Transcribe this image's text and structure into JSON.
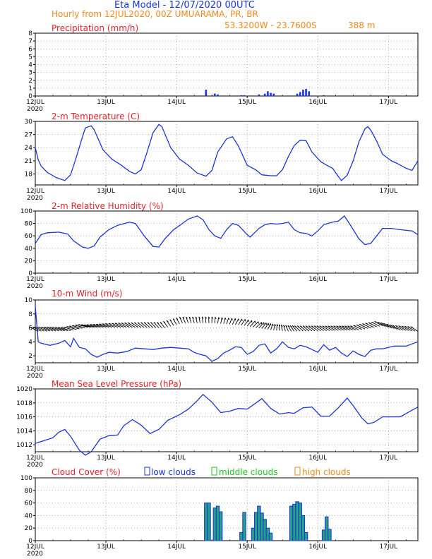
{
  "header": {
    "title": "Eta Model - 12/07/2020 00UTC",
    "subtitle": "Hourly from 12JUL2020, 00Z  UMUARAMA, PR, BR",
    "coords": "53.3200W - 23.7600S",
    "elevation": "388  m"
  },
  "colors": {
    "series": "#1a35d6",
    "title": "#e8202a",
    "header": "#1a35d6",
    "subheader": "#f08a1c",
    "low": "#1a35d6",
    "middle": "#16c816",
    "high": "#f08a1c",
    "wind": "#000000"
  },
  "day_labels": [
    "12JUL",
    "13JUL",
    "14JUL",
    "15JUL",
    "16JUL",
    "17JUL"
  ],
  "year_label": "2020",
  "chart_data": [
    {
      "type": "bar",
      "title": "Precipitation (mm/h)",
      "ylim": [
        0,
        8
      ],
      "yticks": [
        0,
        1,
        2,
        3,
        4,
        5,
        6,
        7,
        8
      ],
      "hours": [
        58,
        61,
        62,
        70,
        71,
        76,
        78,
        79,
        80,
        81,
        89,
        90,
        91,
        92,
        93,
        98
      ],
      "values": [
        0.8,
        0.3,
        0.2,
        0.1,
        0.1,
        0.2,
        0.3,
        0.6,
        0.4,
        0.3,
        0.3,
        0.5,
        0.8,
        0.9,
        0.6,
        0.1
      ]
    },
    {
      "type": "line",
      "title": "2-m Temperature (C)",
      "ylim": [
        15.5,
        30
      ],
      "yticks": [
        18,
        21,
        24,
        27,
        30
      ],
      "points": [
        [
          0,
          24.0
        ],
        [
          1,
          21.2
        ],
        [
          2,
          19.8
        ],
        [
          4,
          18.4
        ],
        [
          7,
          17.2
        ],
        [
          10,
          16.5
        ],
        [
          12,
          17.8
        ],
        [
          14,
          22.0
        ],
        [
          16,
          26.4
        ],
        [
          17,
          28.5
        ],
        [
          19,
          29.0
        ],
        [
          20,
          28.1
        ],
        [
          23,
          23.5
        ],
        [
          26,
          21.4
        ],
        [
          29,
          20.1
        ],
        [
          32,
          18.6
        ],
        [
          34,
          18.0
        ],
        [
          36,
          19.0
        ],
        [
          38,
          23.0
        ],
        [
          40,
          27.4
        ],
        [
          42,
          29.3
        ],
        [
          43,
          28.8
        ],
        [
          46,
          24.0
        ],
        [
          49,
          21.4
        ],
        [
          52,
          20.0
        ],
        [
          55,
          18.2
        ],
        [
          58,
          17.5
        ],
        [
          60,
          18.8
        ],
        [
          62,
          23.0
        ],
        [
          65,
          26.0
        ],
        [
          67,
          26.5
        ],
        [
          69,
          24.4
        ],
        [
          72,
          20.0
        ],
        [
          75,
          18.9
        ],
        [
          77,
          17.8
        ],
        [
          80,
          17.6
        ],
        [
          82,
          17.6
        ],
        [
          84,
          19.0
        ],
        [
          86,
          22.0
        ],
        [
          88,
          24.5
        ],
        [
          90,
          25.7
        ],
        [
          92,
          25.6
        ],
        [
          94,
          23.0
        ],
        [
          97,
          20.8
        ],
        [
          99,
          20.0
        ],
        [
          101,
          19.3
        ],
        [
          103,
          17.4
        ],
        [
          104,
          16.5
        ],
        [
          106,
          17.7
        ],
        [
          108,
          21.0
        ],
        [
          110,
          25.4
        ],
        [
          112,
          28.3
        ],
        [
          113,
          28.8
        ],
        [
          114,
          28.0
        ],
        [
          116,
          25.5
        ],
        [
          118,
          22.5
        ],
        [
          121,
          21.0
        ],
        [
          123,
          20.4
        ],
        [
          126,
          19.3
        ],
        [
          128,
          18.8
        ],
        [
          130,
          21.0
        ]
      ]
    },
    {
      "type": "line",
      "title": "2-m Relative Humidity (%)",
      "ylim": [
        0,
        100
      ],
      "yticks": [
        0,
        20,
        40,
        60,
        80,
        100
      ],
      "points": [
        [
          0,
          48
        ],
        [
          2,
          62
        ],
        [
          4,
          65
        ],
        [
          8,
          66
        ],
        [
          11,
          63
        ],
        [
          13,
          52
        ],
        [
          16,
          42
        ],
        [
          18,
          40
        ],
        [
          20,
          44
        ],
        [
          22,
          58
        ],
        [
          25,
          70
        ],
        [
          28,
          77
        ],
        [
          32,
          82
        ],
        [
          34,
          80
        ],
        [
          37,
          60
        ],
        [
          40,
          43
        ],
        [
          42,
          42
        ],
        [
          44,
          55
        ],
        [
          47,
          70
        ],
        [
          50,
          80
        ],
        [
          52,
          87
        ],
        [
          55,
          92
        ],
        [
          57,
          86
        ],
        [
          59,
          70
        ],
        [
          61,
          60
        ],
        [
          63,
          56
        ],
        [
          65,
          70
        ],
        [
          67,
          80
        ],
        [
          69,
          77
        ],
        [
          72,
          62
        ],
        [
          73,
          58
        ],
        [
          76,
          72
        ],
        [
          78,
          78
        ],
        [
          80,
          80
        ],
        [
          82,
          79
        ],
        [
          84,
          80
        ],
        [
          86,
          82
        ],
        [
          88,
          70
        ],
        [
          90,
          65
        ],
        [
          92,
          64
        ],
        [
          94,
          60
        ],
        [
          96,
          68
        ],
        [
          98,
          78
        ],
        [
          101,
          82
        ],
        [
          103,
          84
        ],
        [
          105,
          92
        ],
        [
          107,
          78
        ],
        [
          110,
          55
        ],
        [
          112,
          46
        ],
        [
          114,
          48
        ],
        [
          116,
          60
        ],
        [
          118,
          72
        ],
        [
          121,
          72
        ],
        [
          124,
          70
        ],
        [
          128,
          68
        ],
        [
          130,
          62
        ]
      ]
    },
    {
      "type": "line",
      "title": "10-m Wind (m/s)",
      "ylim": [
        1,
        10
      ],
      "yticks": [
        2,
        4,
        6,
        8,
        10
      ],
      "points": [
        [
          0,
          9.1
        ],
        [
          1,
          4.0
        ],
        [
          2,
          3.8
        ],
        [
          5,
          3.5
        ],
        [
          8,
          3.8
        ],
        [
          10,
          4.2
        ],
        [
          12,
          3.3
        ],
        [
          13,
          4.5
        ],
        [
          15,
          3.2
        ],
        [
          17,
          3.0
        ],
        [
          19,
          2.2
        ],
        [
          21,
          1.8
        ],
        [
          23,
          2.2
        ],
        [
          25,
          2.5
        ],
        [
          28,
          2.4
        ],
        [
          31,
          2.6
        ],
        [
          34,
          3.1
        ],
        [
          37,
          3.0
        ],
        [
          40,
          2.9
        ],
        [
          43,
          3.1
        ],
        [
          46,
          3.2
        ],
        [
          49,
          3.1
        ],
        [
          52,
          3.0
        ],
        [
          54,
          2.5
        ],
        [
          56,
          2.2
        ],
        [
          58,
          2.0
        ],
        [
          60,
          1.2
        ],
        [
          62,
          1.6
        ],
        [
          64,
          2.4
        ],
        [
          66,
          2.8
        ],
        [
          68,
          3.3
        ],
        [
          70,
          3.2
        ],
        [
          72,
          2.2
        ],
        [
          74,
          2.6
        ],
        [
          76,
          3.5
        ],
        [
          78,
          3.7
        ],
        [
          80,
          2.4
        ],
        [
          82,
          3.0
        ],
        [
          84,
          4.0
        ],
        [
          86,
          3.2
        ],
        [
          88,
          3.0
        ],
        [
          90,
          3.5
        ],
        [
          92,
          3.3
        ],
        [
          94,
          2.9
        ],
        [
          96,
          2.5
        ],
        [
          98,
          3.6
        ],
        [
          100,
          2.8
        ],
        [
          102,
          3.2
        ],
        [
          104,
          2.4
        ],
        [
          106,
          1.9
        ],
        [
          108,
          2.7
        ],
        [
          110,
          2.2
        ],
        [
          112,
          1.9
        ],
        [
          114,
          2.8
        ],
        [
          116,
          3.0
        ],
        [
          118,
          3.0
        ],
        [
          122,
          3.4
        ],
        [
          126,
          3.4
        ],
        [
          130,
          4.0
        ]
      ],
      "barb_levels": [
        [
          0,
          5.5
        ],
        [
          12,
          5.6
        ],
        [
          18,
          6.1
        ],
        [
          30,
          6.1
        ],
        [
          44,
          6.0
        ],
        [
          50,
          6.7
        ],
        [
          60,
          6.7
        ],
        [
          70,
          6.4
        ],
        [
          80,
          5.7
        ],
        [
          86,
          5.5
        ],
        [
          100,
          5.6
        ],
        [
          110,
          5.7
        ],
        [
          118,
          6.3
        ],
        [
          124,
          5.7
        ],
        [
          130,
          5.5
        ]
      ],
      "barb_direction_deg": [
        [
          0,
          225
        ],
        [
          20,
          200
        ],
        [
          40,
          240
        ],
        [
          60,
          270
        ],
        [
          75,
          300
        ],
        [
          90,
          240
        ],
        [
          110,
          220
        ],
        [
          130,
          230
        ]
      ]
    },
    {
      "type": "line",
      "title": "Mean Sea Level Pressure (hPa)",
      "ylim": [
        1011,
        1020
      ],
      "yticks": [
        1012,
        1014,
        1016,
        1018,
        1020
      ],
      "points": [
        [
          0,
          1012.2
        ],
        [
          3,
          1012.6
        ],
        [
          6,
          1013.0
        ],
        [
          8,
          1013.8
        ],
        [
          10,
          1014.2
        ],
        [
          12,
          1013.2
        ],
        [
          15,
          1011.2
        ],
        [
          17,
          1010.5
        ],
        [
          19,
          1011.0
        ],
        [
          22,
          1012.8
        ],
        [
          25,
          1013.3
        ],
        [
          28,
          1013.4
        ],
        [
          30,
          1014.7
        ],
        [
          33,
          1015.6
        ],
        [
          36,
          1014.8
        ],
        [
          39,
          1013.6
        ],
        [
          42,
          1014.2
        ],
        [
          45,
          1015.5
        ],
        [
          49,
          1016.3
        ],
        [
          52,
          1017.1
        ],
        [
          55,
          1018.3
        ],
        [
          57,
          1019.2
        ],
        [
          60,
          1018.1
        ],
        [
          63,
          1016.6
        ],
        [
          66,
          1016.8
        ],
        [
          69,
          1017.2
        ],
        [
          72,
          1017.1
        ],
        [
          75,
          1018.0
        ],
        [
          77,
          1018.6
        ],
        [
          80,
          1017.2
        ],
        [
          83,
          1016.4
        ],
        [
          86,
          1016.6
        ],
        [
          88,
          1016.5
        ],
        [
          91,
          1017.3
        ],
        [
          94,
          1017.4
        ],
        [
          97,
          1016.1
        ],
        [
          100,
          1016.1
        ],
        [
          103,
          1017.3
        ],
        [
          106,
          1018.7
        ],
        [
          108,
          1017.6
        ],
        [
          111,
          1015.8
        ],
        [
          113,
          1015.0
        ],
        [
          115,
          1015.2
        ],
        [
          118,
          1016.0
        ],
        [
          121,
          1016.0
        ],
        [
          124,
          1016.0
        ],
        [
          127,
          1016.7
        ],
        [
          130,
          1017.4
        ]
      ]
    },
    {
      "type": "bar",
      "title": "Cloud Cover (%)",
      "ylim": [
        0,
        100
      ],
      "yticks": [
        0,
        20,
        40,
        60,
        80,
        100
      ],
      "legend": [
        "low clouds",
        "middle clouds",
        "high clouds"
      ],
      "hours": [
        58,
        59,
        61,
        62,
        63,
        70,
        71,
        74,
        75,
        76,
        77,
        78,
        79,
        80,
        87,
        88,
        89,
        90,
        91,
        92,
        98,
        99,
        100
      ],
      "values": [
        60,
        60,
        52,
        55,
        46,
        13,
        45,
        20,
        45,
        55,
        44,
        34,
        20,
        12,
        55,
        58,
        62,
        60,
        40,
        13,
        17,
        38,
        18
      ]
    }
  ]
}
